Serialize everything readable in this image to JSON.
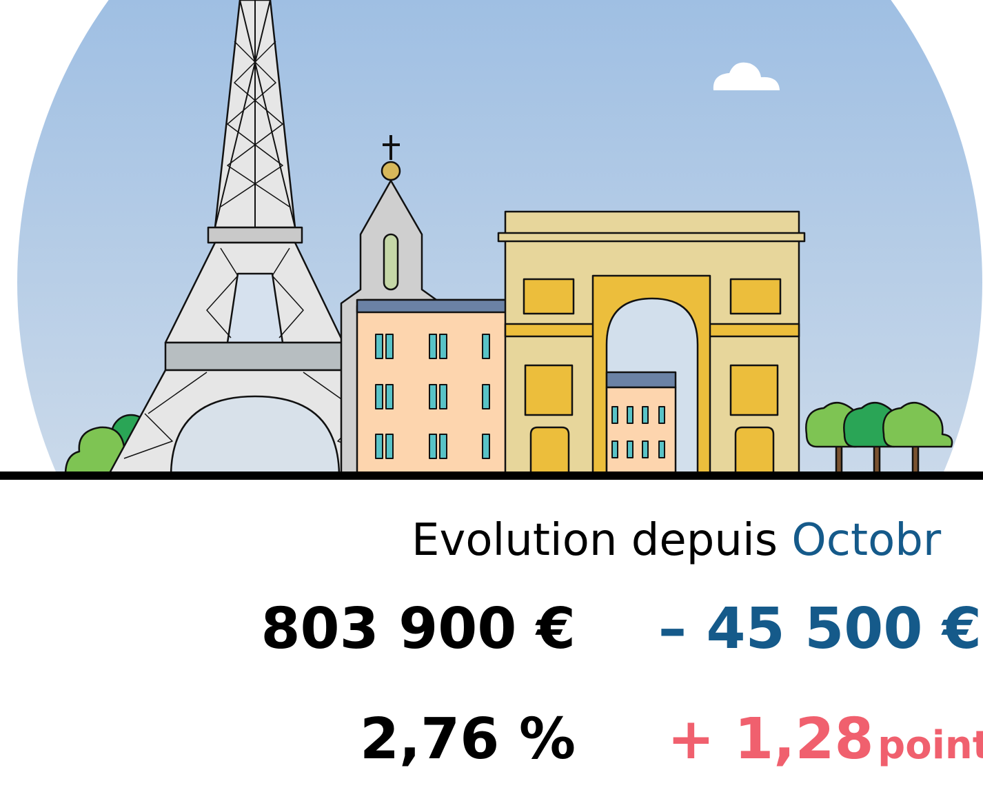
{
  "header": {
    "label": "Evolution depuis",
    "period": "Octobr"
  },
  "rows": [
    {
      "value": "803 900 €",
      "change": "– 45 500 €"
    },
    {
      "value": "2,76 %",
      "change": "+ 1,28",
      "unit": "point"
    }
  ]
}
